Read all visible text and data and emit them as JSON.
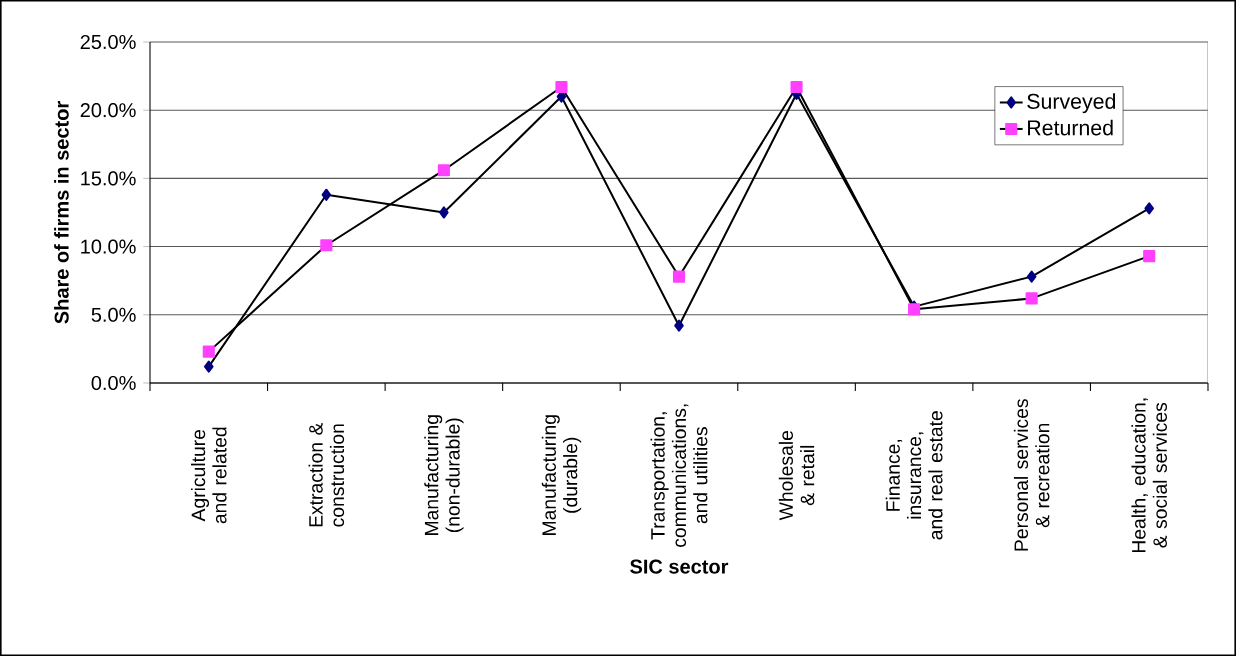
{
  "chart_data": {
    "type": "line",
    "xlabel": "SIC sector",
    "ylabel": "Share of firms in sector",
    "categories": [
      "Agriculture and related",
      "Extraction & construction",
      "Manufacturing (non-durable)",
      "Manufacturing (durable)",
      "Transportation, communications, and utilities",
      "Wholesale & retail",
      "Finance, insurance, and real estate",
      "Personal services & recreation",
      "Health, education, & social services"
    ],
    "series": [
      {
        "name": "Surveyed",
        "color": "#000080",
        "marker": "diamond",
        "values": [
          1.2,
          13.8,
          12.5,
          21.0,
          4.2,
          21.2,
          5.6,
          7.8,
          12.8
        ]
      },
      {
        "name": "Returned",
        "color": "#ff40ff",
        "marker": "square",
        "values": [
          2.3,
          10.1,
          15.6,
          21.7,
          7.8,
          21.7,
          5.4,
          6.2,
          9.3
        ]
      }
    ],
    "ylim": [
      0,
      25
    ],
    "yticks": [
      {
        "value": 0,
        "label": "0.0%"
      },
      {
        "value": 5,
        "label": "5.0%"
      },
      {
        "value": 10,
        "label": "10.0%"
      },
      {
        "value": 15,
        "label": "15.0%"
      },
      {
        "value": 20,
        "label": "20.0%"
      },
      {
        "value": 25,
        "label": "25.0%"
      }
    ],
    "grid": "y",
    "legend": "top right",
    "line_style": "solid"
  }
}
